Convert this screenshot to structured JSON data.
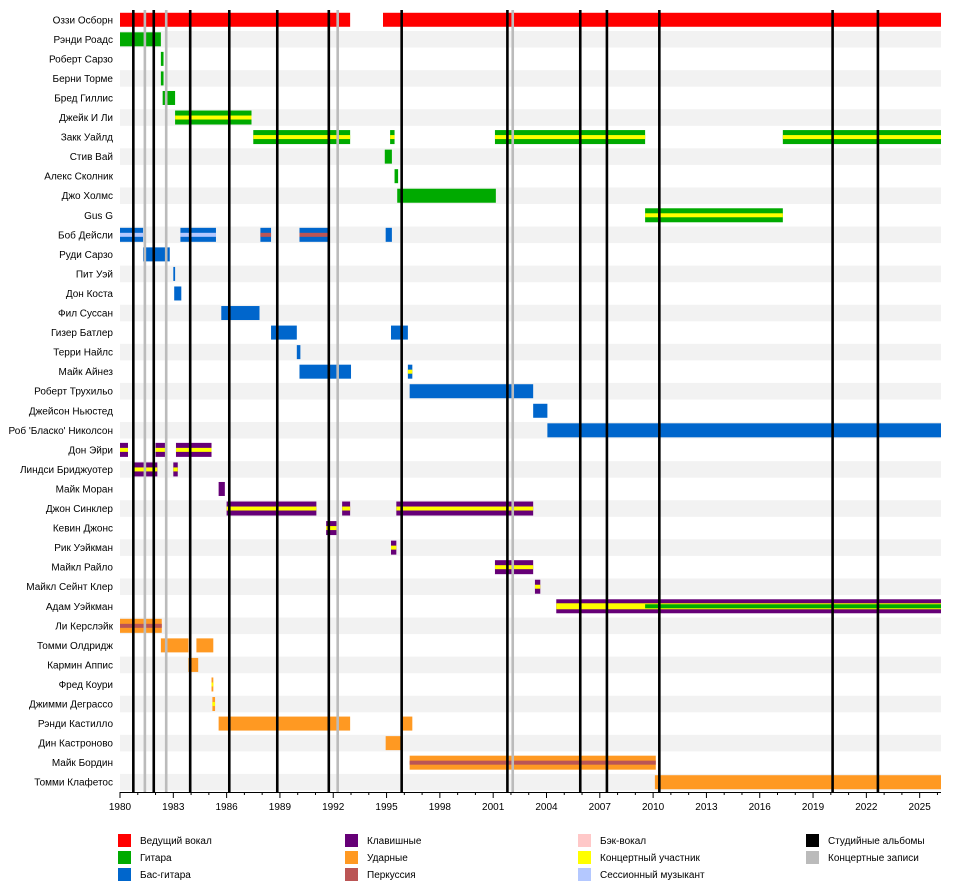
{
  "chart_data": {
    "type": "timeline",
    "members": [
      "Оззи Осборн",
      "Рэнди Роадс",
      "Роберт Сарзо",
      "Берни Торме",
      "Бред Гиллис",
      "Джейк И Ли",
      "Закк Уайлд",
      "Стив Вай",
      "Алекс Сколник",
      "Джо Холмс",
      "Gus G",
      "Боб Дейсли",
      "Руди Сарзо",
      "Пит Уэй",
      "Дон Коста",
      "Фил Суссан",
      "Гизер Батлер",
      "Терри Найлс",
      "Майк Айнез",
      "Роберт Трухильо",
      "Джейсон Ньюстед",
      "Роб 'Бласко' Николсон",
      "Дон Эйри",
      "Линдси Бриджуотер",
      "Майк Моран",
      "Джон Синклер",
      "Кевин Джонс",
      "Рик Уэйкман",
      "Майкл Райло",
      "Майкл Сейнт Клер",
      "Адам Уэйкман",
      "Ли Керслэйк",
      "Томми Олдридж",
      "Кармин Аппис",
      "Фред Коури",
      "Джимми Деграссо",
      "Рэнди Кастилло",
      "Дин Кастроново",
      "Майк Бордин",
      "Томми Клафетос"
    ],
    "x_range": [
      1980,
      2026.2
    ],
    "x_ticks": [
      "1980",
      "1983",
      "1986",
      "1989",
      "1992",
      "1995",
      "1998",
      "2001",
      "2004",
      "2007",
      "2010",
      "2013",
      "2016",
      "2019",
      "2022",
      "2025"
    ],
    "roles": {
      "vocal": {
        "label": "Ведущий вокал",
        "color": "#ff0000"
      },
      "guitar": {
        "label": "Гитара",
        "color": "#00aa00"
      },
      "bass": {
        "label": "Бас-гитара",
        "color": "#0066cc"
      },
      "keys": {
        "label": "Клавишные",
        "color": "#660077"
      },
      "drums": {
        "label": "Ударные",
        "color": "#ff9922"
      },
      "perc": {
        "label": "Перкуссия",
        "color": "#bb5555"
      },
      "backing": {
        "label": "Бэк-вокал",
        "color": "#ffc8c8"
      },
      "touring": {
        "label": "Концертный участник",
        "color": "#ffff00"
      },
      "session": {
        "label": "Сессионный музыкант",
        "color": "#b4c8ff"
      },
      "studio": {
        "label": "Студийные альбомы",
        "color": "#000000"
      },
      "live": {
        "label": "Концертные записи",
        "color": "#bbbbbb"
      }
    },
    "legend": [
      "vocal",
      "guitar",
      "bass",
      "keys",
      "drums",
      "perc",
      "backing",
      "touring",
      "session",
      "studio",
      "live"
    ],
    "studio_albums": [
      1980.75,
      1981.9,
      1983.95,
      1986.15,
      1988.85,
      1991.75,
      1995.85,
      2001.8,
      2005.9,
      2007.4,
      2010.35,
      2020.1,
      2022.65
    ],
    "live_albums": [
      1981.4,
      1982.6,
      1992.25,
      2002.1
    ],
    "bars": [
      {
        "row": 0,
        "start": 1979.9,
        "end": 1992.95,
        "roles": [
          "vocal"
        ]
      },
      {
        "row": 0,
        "start": 1994.8,
        "end": 2026.2,
        "roles": [
          "vocal"
        ]
      },
      {
        "row": 1,
        "start": 1979.9,
        "end": 1982.3,
        "roles": [
          "guitar"
        ]
      },
      {
        "row": 2,
        "start": 1982.3,
        "end": 1982.45,
        "roles": [
          "guitar"
        ]
      },
      {
        "row": 3,
        "start": 1982.3,
        "end": 1982.45,
        "roles": [
          "guitar"
        ]
      },
      {
        "row": 4,
        "start": 1982.4,
        "end": 1983.1,
        "roles": [
          "guitar"
        ]
      },
      {
        "row": 5,
        "start": 1983.1,
        "end": 1987.4,
        "roles": [
          "guitar",
          "touring"
        ]
      },
      {
        "row": 6,
        "start": 1987.5,
        "end": 1992.95,
        "roles": [
          "guitar",
          "touring"
        ]
      },
      {
        "row": 6,
        "start": 1995.2,
        "end": 1995.45,
        "roles": [
          "guitar",
          "touring"
        ]
      },
      {
        "row": 6,
        "start": 2001.1,
        "end": 2009.55,
        "roles": [
          "guitar",
          "touring"
        ]
      },
      {
        "row": 6,
        "start": 2017.3,
        "end": 2026.2,
        "roles": [
          "guitar",
          "touring"
        ]
      },
      {
        "row": 7,
        "start": 1994.9,
        "end": 1995.3,
        "roles": [
          "guitar"
        ]
      },
      {
        "row": 8,
        "start": 1995.45,
        "end": 1995.65,
        "roles": [
          "guitar"
        ]
      },
      {
        "row": 9,
        "start": 1995.6,
        "end": 2001.15,
        "roles": [
          "guitar"
        ]
      },
      {
        "row": 10,
        "start": 2009.55,
        "end": 2017.3,
        "roles": [
          "guitar",
          "touring"
        ]
      },
      {
        "row": 11,
        "start": 1979.9,
        "end": 1981.3,
        "roles": [
          "bass",
          "session"
        ]
      },
      {
        "row": 11,
        "start": 1983.4,
        "end": 1985.4,
        "roles": [
          "bass",
          "session"
        ]
      },
      {
        "row": 11,
        "start": 1987.9,
        "end": 1988.5,
        "roles": [
          "bass",
          "perc"
        ]
      },
      {
        "row": 11,
        "start": 1990.1,
        "end": 1991.75,
        "roles": [
          "bass",
          "perc"
        ]
      },
      {
        "row": 11,
        "start": 1994.95,
        "end": 1995.3,
        "roles": [
          "bass"
        ]
      },
      {
        "row": 12,
        "start": 1981.3,
        "end": 1982.8,
        "roles": [
          "bass"
        ]
      },
      {
        "row": 13,
        "start": 1983.0,
        "end": 1983.1,
        "roles": [
          "bass"
        ]
      },
      {
        "row": 14,
        "start": 1983.05,
        "end": 1983.45,
        "roles": [
          "bass"
        ]
      },
      {
        "row": 15,
        "start": 1985.7,
        "end": 1987.85,
        "roles": [
          "bass"
        ]
      },
      {
        "row": 16,
        "start": 1988.5,
        "end": 1989.95,
        "roles": [
          "bass"
        ]
      },
      {
        "row": 16,
        "start": 1995.25,
        "end": 1996.2,
        "roles": [
          "bass"
        ]
      },
      {
        "row": 17,
        "start": 1989.95,
        "end": 1990.15,
        "roles": [
          "bass"
        ]
      },
      {
        "row": 18,
        "start": 1990.1,
        "end": 1993.0,
        "roles": [
          "bass"
        ]
      },
      {
        "row": 18,
        "start": 1996.2,
        "end": 1996.45,
        "roles": [
          "bass",
          "touring"
        ]
      },
      {
        "row": 19,
        "start": 1996.3,
        "end": 2003.25,
        "roles": [
          "bass"
        ]
      },
      {
        "row": 20,
        "start": 2003.25,
        "end": 2004.05,
        "roles": [
          "bass"
        ]
      },
      {
        "row": 21,
        "start": 2004.05,
        "end": 2026.2,
        "roles": [
          "bass"
        ]
      },
      {
        "row": 22,
        "start": 1979.9,
        "end": 1980.45,
        "roles": [
          "keys",
          "touring"
        ]
      },
      {
        "row": 22,
        "start": 1982.0,
        "end": 1982.6,
        "roles": [
          "keys",
          "touring"
        ]
      },
      {
        "row": 22,
        "start": 1983.15,
        "end": 1985.15,
        "roles": [
          "keys",
          "touring"
        ]
      },
      {
        "row": 23,
        "start": 1980.7,
        "end": 1982.1,
        "roles": [
          "keys",
          "touring"
        ]
      },
      {
        "row": 23,
        "start": 1983.0,
        "end": 1983.25,
        "roles": [
          "keys",
          "touring"
        ]
      },
      {
        "row": 24,
        "start": 1985.55,
        "end": 1985.9,
        "roles": [
          "keys"
        ]
      },
      {
        "row": 25,
        "start": 1986.0,
        "end": 1991.05,
        "roles": [
          "keys",
          "touring"
        ]
      },
      {
        "row": 25,
        "start": 1992.5,
        "end": 1992.95,
        "roles": [
          "keys",
          "touring"
        ]
      },
      {
        "row": 25,
        "start": 1995.55,
        "end": 2003.25,
        "roles": [
          "keys",
          "touring"
        ]
      },
      {
        "row": 26,
        "start": 1991.6,
        "end": 1992.2,
        "roles": [
          "keys",
          "touring"
        ]
      },
      {
        "row": 27,
        "start": 1995.25,
        "end": 1995.55,
        "roles": [
          "keys",
          "touring"
        ]
      },
      {
        "row": 28,
        "start": 2001.1,
        "end": 2003.25,
        "roles": [
          "keys",
          "touring"
        ]
      },
      {
        "row": 29,
        "start": 2003.35,
        "end": 2003.65,
        "roles": [
          "keys",
          "touring"
        ]
      },
      {
        "row": 30,
        "start": 2004.55,
        "end": 2026.2,
        "roles": [
          "keys",
          "touring",
          "guitar"
        ]
      },
      {
        "row": 31,
        "start": 1979.9,
        "end": 1982.35,
        "roles": [
          "drums",
          "perc"
        ]
      },
      {
        "row": 32,
        "start": 1982.3,
        "end": 1983.85,
        "roles": [
          "drums"
        ]
      },
      {
        "row": 32,
        "start": 1984.3,
        "end": 1985.25,
        "roles": [
          "drums"
        ]
      },
      {
        "row": 33,
        "start": 1983.85,
        "end": 1984.4,
        "roles": [
          "drums"
        ]
      },
      {
        "row": 34,
        "start": 1985.15,
        "end": 1985.25,
        "roles": [
          "drums",
          "touring"
        ]
      },
      {
        "row": 35,
        "start": 1985.2,
        "end": 1985.35,
        "roles": [
          "drums",
          "touring"
        ]
      },
      {
        "row": 36,
        "start": 1985.55,
        "end": 1992.95,
        "roles": [
          "drums"
        ]
      },
      {
        "row": 36,
        "start": 1995.85,
        "end": 1996.45,
        "roles": [
          "drums"
        ]
      },
      {
        "row": 37,
        "start": 1994.95,
        "end": 1995.9,
        "roles": [
          "drums"
        ]
      },
      {
        "row": 38,
        "start": 1996.3,
        "end": 2010.15,
        "roles": [
          "drums",
          "perc"
        ]
      },
      {
        "row": 39,
        "start": 2010.1,
        "end": 2026.2,
        "roles": [
          "drums"
        ]
      }
    ]
  }
}
